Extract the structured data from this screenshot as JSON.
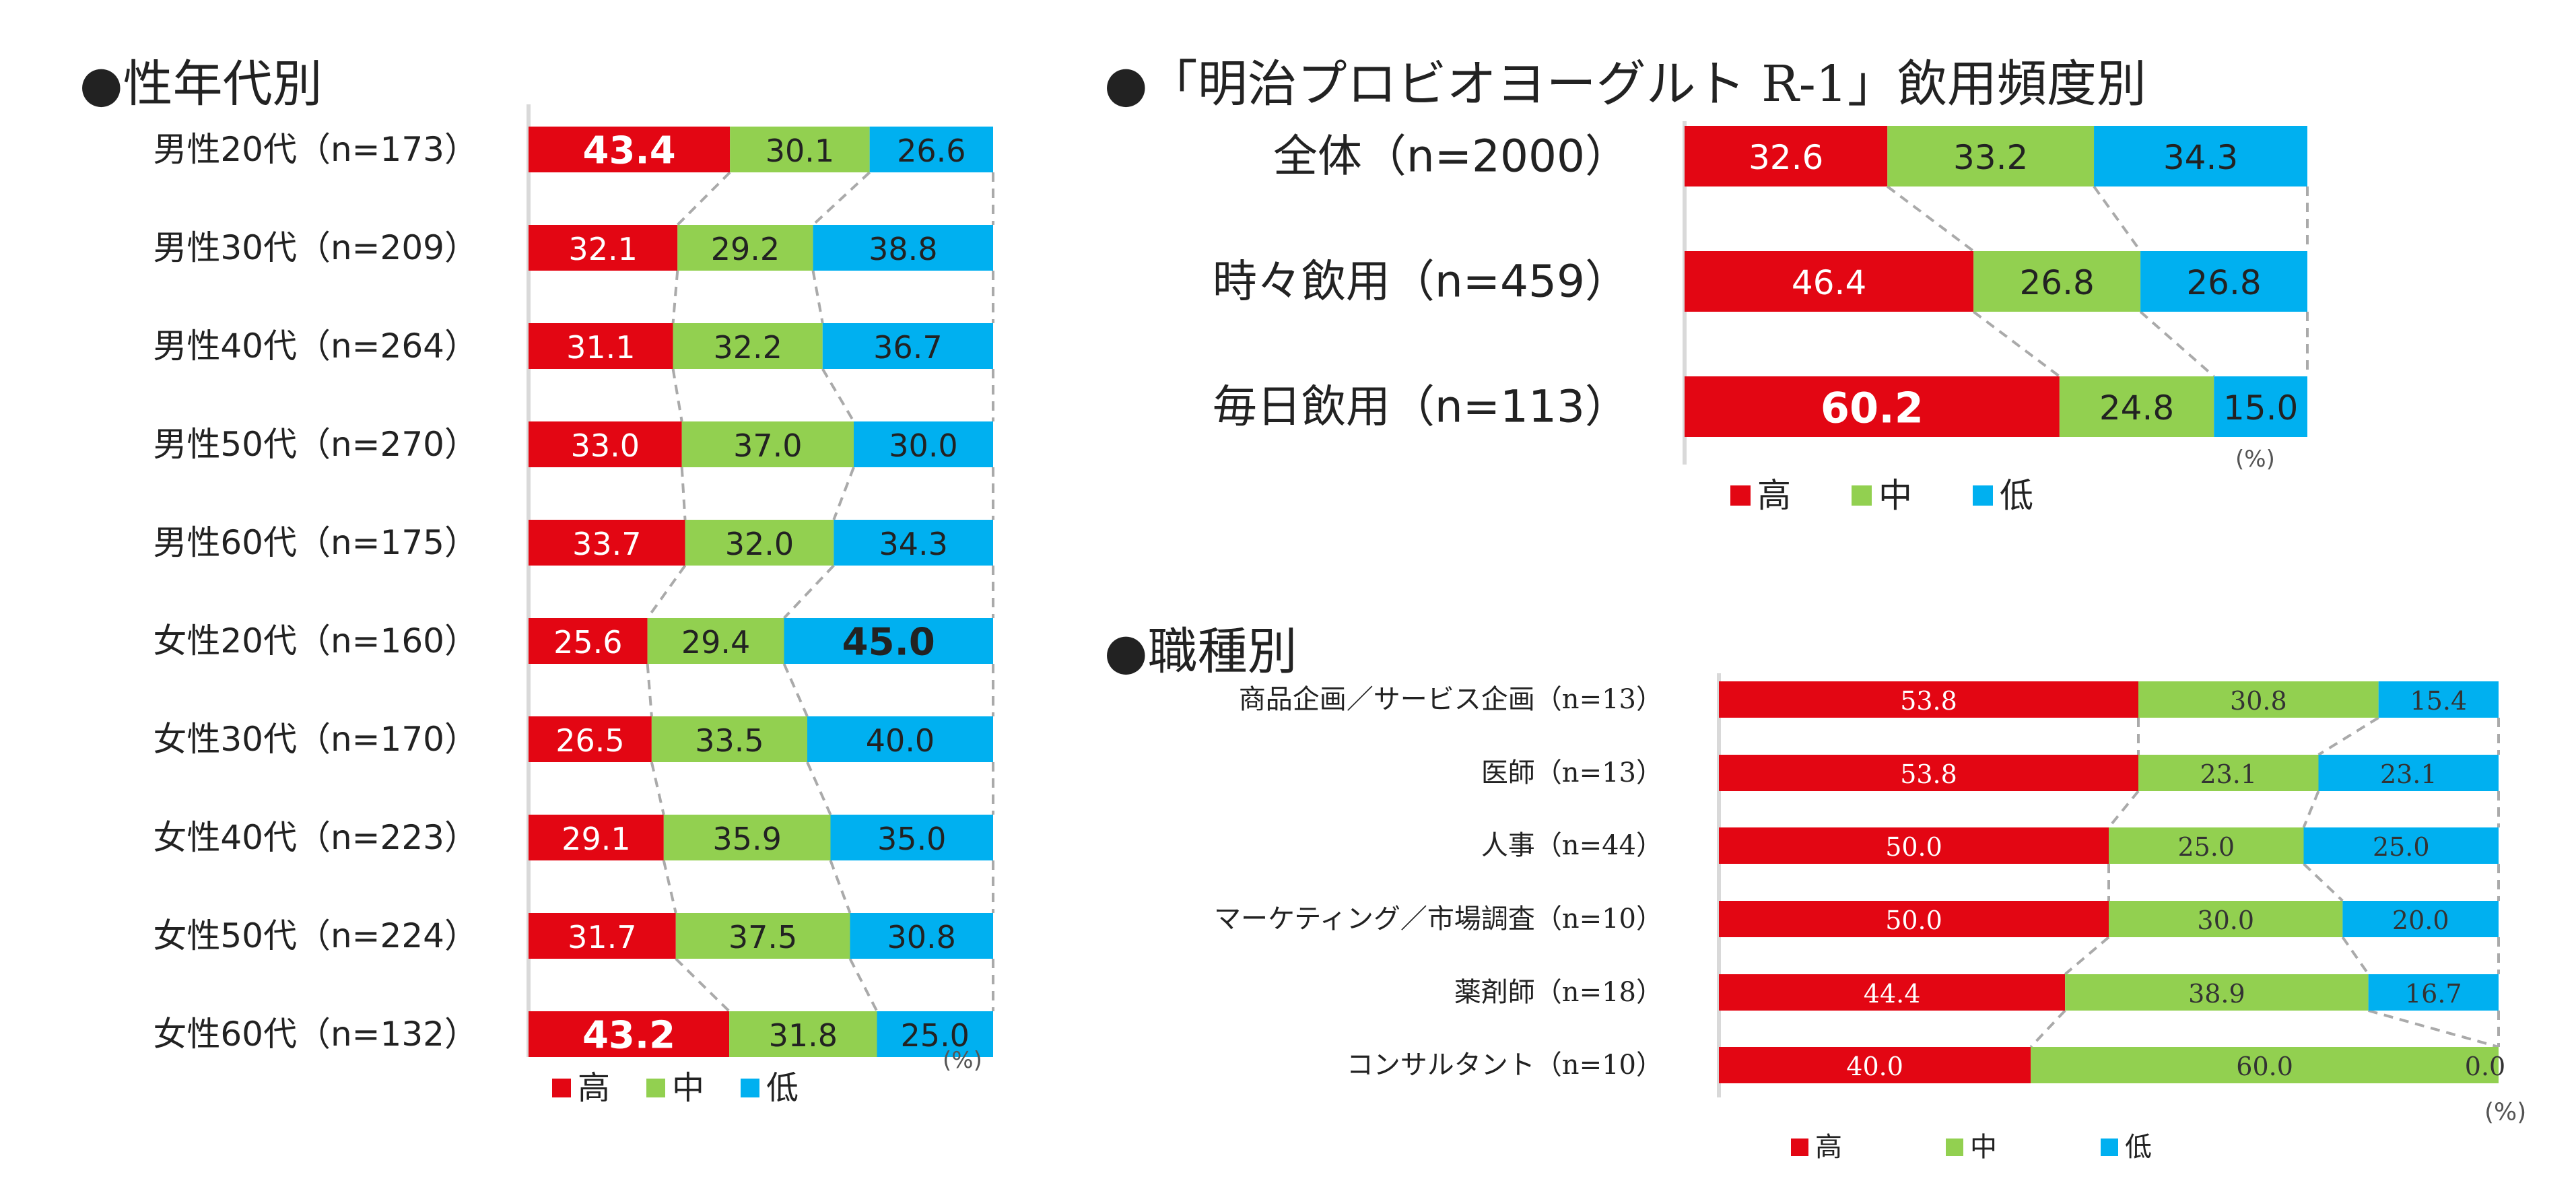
{
  "colors": {
    "high": "#e30613",
    "mid": "#92d050",
    "low": "#00b0f0",
    "connector": "#aaaaaa",
    "axis": "#d9d9d9",
    "text": "#222222"
  },
  "legend": {
    "high": "高",
    "mid": "中",
    "low": "低"
  },
  "chart_data": [
    {
      "id": "by-gender-age",
      "type": "bar",
      "stacked": "100%",
      "title": "●性年代別",
      "unit": "(%)",
      "categories": [
        "男性20代（n=173）",
        "男性30代（n=209）",
        "男性40代（n=264）",
        "男性50代（n=270）",
        "男性60代（n=175）",
        "女性20代（n=160）",
        "女性30代（n=170）",
        "女性40代（n=223）",
        "女性50代（n=224）",
        "女性60代（n=132）"
      ],
      "series": [
        {
          "name": "高",
          "values": [
            43.4,
            32.1,
            31.1,
            33.0,
            33.7,
            25.6,
            26.5,
            29.1,
            31.7,
            43.2
          ]
        },
        {
          "name": "中",
          "values": [
            30.1,
            29.2,
            32.2,
            37.0,
            32.0,
            29.4,
            33.5,
            35.9,
            37.5,
            31.8
          ]
        },
        {
          "name": "低",
          "values": [
            26.6,
            38.8,
            36.7,
            30.0,
            34.3,
            45.0,
            40.0,
            35.0,
            30.8,
            25.0
          ]
        }
      ],
      "labels": [
        [
          "43.4",
          "30.1",
          "26.6"
        ],
        [
          "32.1",
          "29.2",
          "38.8"
        ],
        [
          "31.1",
          "32.2",
          "36.7"
        ],
        [
          "33.0",
          "37.0",
          "30.0"
        ],
        [
          "33.7",
          "32.0",
          "34.3"
        ],
        [
          "25.6",
          "29.4",
          "45.0"
        ],
        [
          "26.5",
          "33.5",
          "40.0"
        ],
        [
          "29.1",
          "35.9",
          "35.0"
        ],
        [
          "31.7",
          "37.5",
          "30.8"
        ],
        [
          "43.2",
          "31.8",
          "25.0"
        ]
      ],
      "emphasis": [
        [
          0,
          0
        ],
        [
          9,
          0
        ],
        [
          5,
          2
        ]
      ]
    },
    {
      "id": "by-frequency",
      "type": "bar",
      "stacked": "100%",
      "title": "●「明治プロビオヨーグルト R-1」飲用頻度別",
      "unit": "(%)",
      "categories": [
        "全体（n=2000）",
        "時々飲用（n=459）",
        "毎日飲用（n=113）"
      ],
      "series": [
        {
          "name": "高",
          "values": [
            32.6,
            46.4,
            60.2
          ]
        },
        {
          "name": "中",
          "values": [
            33.2,
            26.8,
            24.8
          ]
        },
        {
          "name": "低",
          "values": [
            34.3,
            26.8,
            15.0
          ]
        }
      ],
      "labels": [
        [
          "32.6",
          "33.2",
          "34.3"
        ],
        [
          "46.4",
          "26.8",
          "26.8"
        ],
        [
          "60.2",
          "24.8",
          "15.0"
        ]
      ],
      "emphasis": [
        [
          2,
          0
        ]
      ]
    },
    {
      "id": "by-occupation",
      "type": "bar",
      "stacked": "100%",
      "title": "●職種別",
      "unit": "(%)",
      "categories": [
        "商品企画／サービス企画（n=13）",
        "医師（n=13）",
        "人事（n=44）",
        "マーケティング／市場調査（n=10）",
        "薬剤師（n=18）",
        "コンサルタント（n=10）"
      ],
      "series": [
        {
          "name": "高",
          "values": [
            53.8,
            53.8,
            50.0,
            50.0,
            44.4,
            40.0
          ]
        },
        {
          "name": "中",
          "values": [
            30.8,
            23.1,
            25.0,
            30.0,
            38.9,
            60.0
          ]
        },
        {
          "name": "低",
          "values": [
            15.4,
            23.1,
            25.0,
            20.0,
            16.7,
            0.0
          ]
        }
      ],
      "labels": [
        [
          "53.8",
          "30.8",
          "15.4"
        ],
        [
          "53.8",
          "23.1",
          "23.1"
        ],
        [
          "50.0",
          "25.0",
          "25.0"
        ],
        [
          "50.0",
          "30.0",
          "20.0"
        ],
        [
          "44.4",
          "38.9",
          "16.7"
        ],
        [
          "40.0",
          "60.0",
          "0.0"
        ]
      ],
      "emphasis": []
    }
  ]
}
